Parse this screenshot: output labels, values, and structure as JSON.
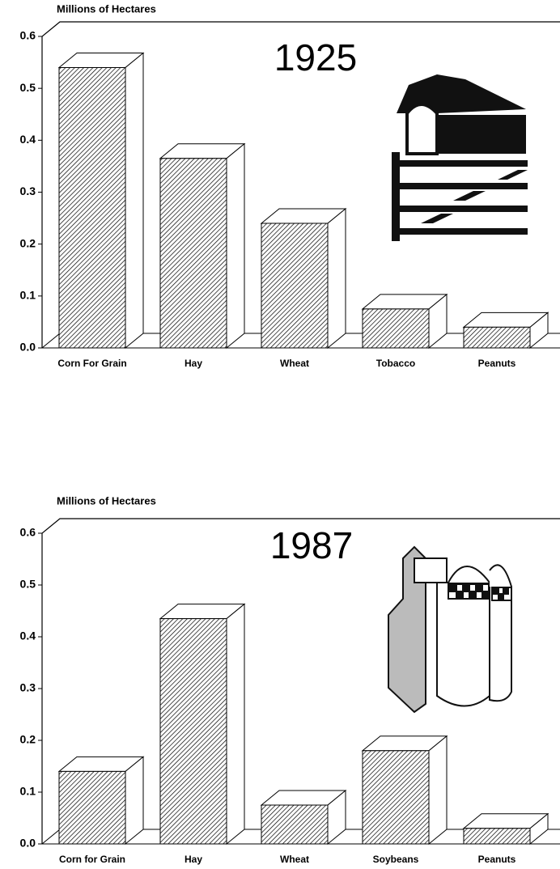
{
  "chart_data": [
    {
      "type": "bar",
      "title": "1925",
      "y_label": "Millions of Hectares",
      "categories": [
        "Corn For Grain",
        "Hay",
        "Wheat",
        "Tobacco",
        "Peanuts"
      ],
      "values": [
        0.54,
        0.365,
        0.24,
        0.075,
        0.04
      ],
      "color": "#000000",
      "ylim": [
        0,
        0.6
      ],
      "yticks": [
        {
          "value": 0,
          "label": "0.0"
        },
        0.1,
        0.2,
        0.3,
        0.4,
        0.5,
        0.6
      ]
    },
    {
      "type": "bar",
      "title": "1987",
      "y_label": "Millions of Hectares",
      "categories": [
        "Corn for Grain",
        "Hay",
        "Wheat",
        "Soybeans",
        "Peanuts"
      ],
      "values": [
        0.14,
        0.435,
        0.075,
        0.18,
        0.03
      ],
      "color": "#000000",
      "ylim": [
        0,
        0.6
      ],
      "yticks": [
        {
          "value": 0,
          "label": "0.0"
        },
        0.1,
        0.2,
        0.3,
        0.4,
        0.5,
        0.6
      ]
    }
  ]
}
